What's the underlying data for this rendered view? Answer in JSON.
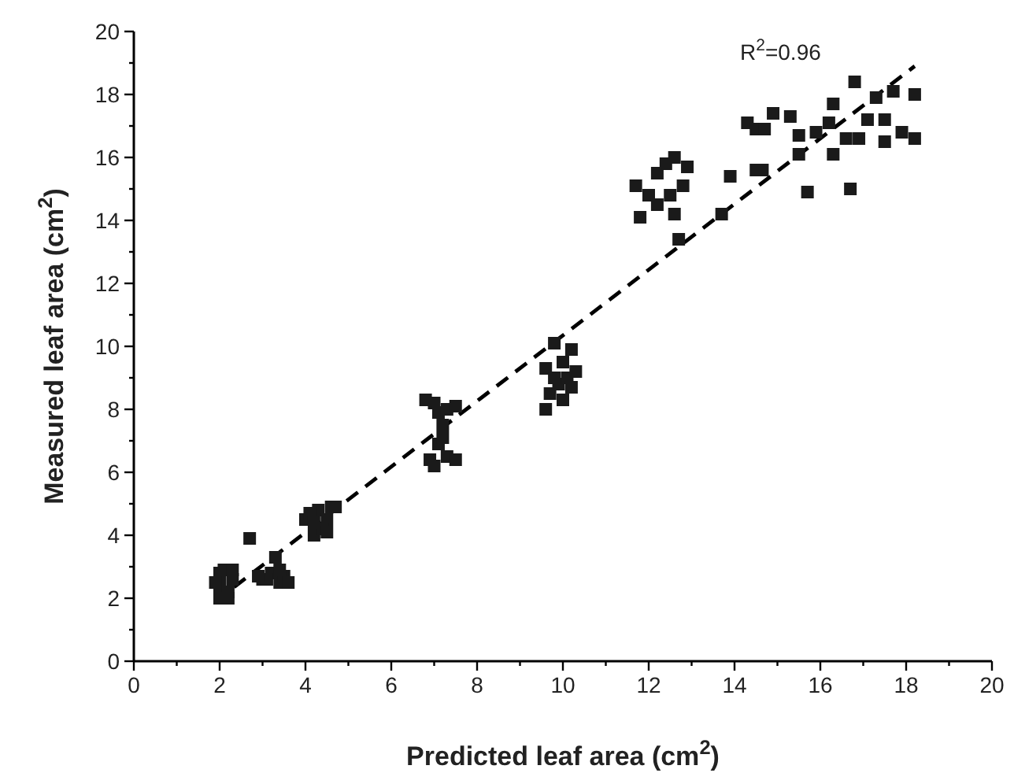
{
  "chart_data": {
    "type": "scatter",
    "xlabel": "Predicted leaf area (cm$^{2}$)",
    "ylabel": "Measured leaf area (cm$^{2}$)",
    "annotations": [
      "R$^{2}$=0.96"
    ],
    "xlim": [
      0,
      20
    ],
    "ylim": [
      0,
      20
    ],
    "xticks": [
      0,
      {
        "value": 1,
        "label": null
      },
      2,
      {
        "value": 3,
        "label": null
      },
      4,
      {
        "value": 5,
        "label": null
      },
      6,
      {
        "value": 7,
        "label": null
      },
      8,
      {
        "value": 9,
        "label": null
      },
      10,
      {
        "value": 11,
        "label": null
      },
      12,
      {
        "value": 13,
        "label": null
      },
      14,
      {
        "value": 15,
        "label": null
      },
      16,
      {
        "value": 17,
        "label": null
      },
      18,
      {
        "value": 19,
        "label": null
      },
      20
    ],
    "yticks": [
      0,
      {
        "value": 1,
        "label": null
      },
      2,
      {
        "value": 3,
        "label": null
      },
      4,
      {
        "value": 5,
        "label": null
      },
      6,
      {
        "value": 7,
        "label": null
      },
      8,
      {
        "value": 9,
        "label": null
      },
      10,
      {
        "value": 11,
        "label": null
      },
      12,
      {
        "value": 13,
        "label": null
      },
      14,
      {
        "value": 15,
        "label": null
      },
      16,
      {
        "value": 17,
        "label": null
      },
      18,
      {
        "value": 19,
        "label": null
      },
      20
    ],
    "grid": false,
    "series": [
      {
        "color": "#1a1a1a",
        "marker": "square",
        "x": [
          2.0,
          2.1,
          2.2,
          2.0,
          2.3,
          1.9,
          2.2,
          2.3,
          2.0,
          2.7,
          3.0,
          3.2,
          3.4,
          3.5,
          3.6,
          3.3,
          3.1,
          2.9,
          3.4,
          4.0,
          4.2,
          4.3,
          4.5,
          4.6,
          4.4,
          4.1,
          4.7,
          4.2,
          4.5,
          6.8,
          7.0,
          7.1,
          7.3,
          7.5,
          7.2,
          7.1,
          6.9,
          7.0,
          7.3,
          7.5,
          7.2,
          9.6,
          9.7,
          9.8,
          10.0,
          10.2,
          9.9,
          10.1,
          10.3,
          9.6,
          10.0,
          10.2,
          9.8,
          11.7,
          11.8,
          12.0,
          12.2,
          12.4,
          12.6,
          12.9,
          12.5,
          12.6,
          12.7,
          12.2,
          12.8,
          13.9,
          14.5,
          14.65,
          13.7,
          15.7,
          16.7,
          14.3,
          14.9,
          15.3,
          15.5,
          15.5,
          15.9,
          16.3,
          16.3,
          16.8,
          16.9,
          17.1,
          17.3,
          17.5,
          17.7,
          17.9,
          18.2,
          18.2,
          17.5,
          16.6,
          16.2,
          14.5,
          14.7
        ],
        "values": [
          2.4,
          2.9,
          2.2,
          2.8,
          2.6,
          2.5,
          2.0,
          2.9,
          2.0,
          3.9,
          2.6,
          2.8,
          2.5,
          2.7,
          2.5,
          3.3,
          2.6,
          2.7,
          2.9,
          4.5,
          4.0,
          4.8,
          4.5,
          4.9,
          4.2,
          4.7,
          4.9,
          4.4,
          4.1,
          8.3,
          8.2,
          7.9,
          8.0,
          8.1,
          7.5,
          6.9,
          6.4,
          6.2,
          6.5,
          6.4,
          7.1,
          8.0,
          8.5,
          10.1,
          9.5,
          9.9,
          8.8,
          9.0,
          9.2,
          9.3,
          8.3,
          8.7,
          9.0,
          15.1,
          14.1,
          14.8,
          15.5,
          15.8,
          16.0,
          15.7,
          14.8,
          14.2,
          13.4,
          14.5,
          15.1,
          15.4,
          15.6,
          15.6,
          14.2,
          14.9,
          15.0,
          17.1,
          17.4,
          17.3,
          16.7,
          16.1,
          16.8,
          17.7,
          16.1,
          18.4,
          16.6,
          17.2,
          17.9,
          17.2,
          18.1,
          16.8,
          18.0,
          16.6,
          16.5,
          16.6,
          17.1,
          16.9,
          16.9
        ]
      },
      {
        "type": "line",
        "color": "#000000",
        "marker": "none",
        "line_style": "dashed",
        "x": [
          1.9,
          18.2
        ],
        "values": [
          1.9,
          18.9
        ]
      }
    ]
  }
}
